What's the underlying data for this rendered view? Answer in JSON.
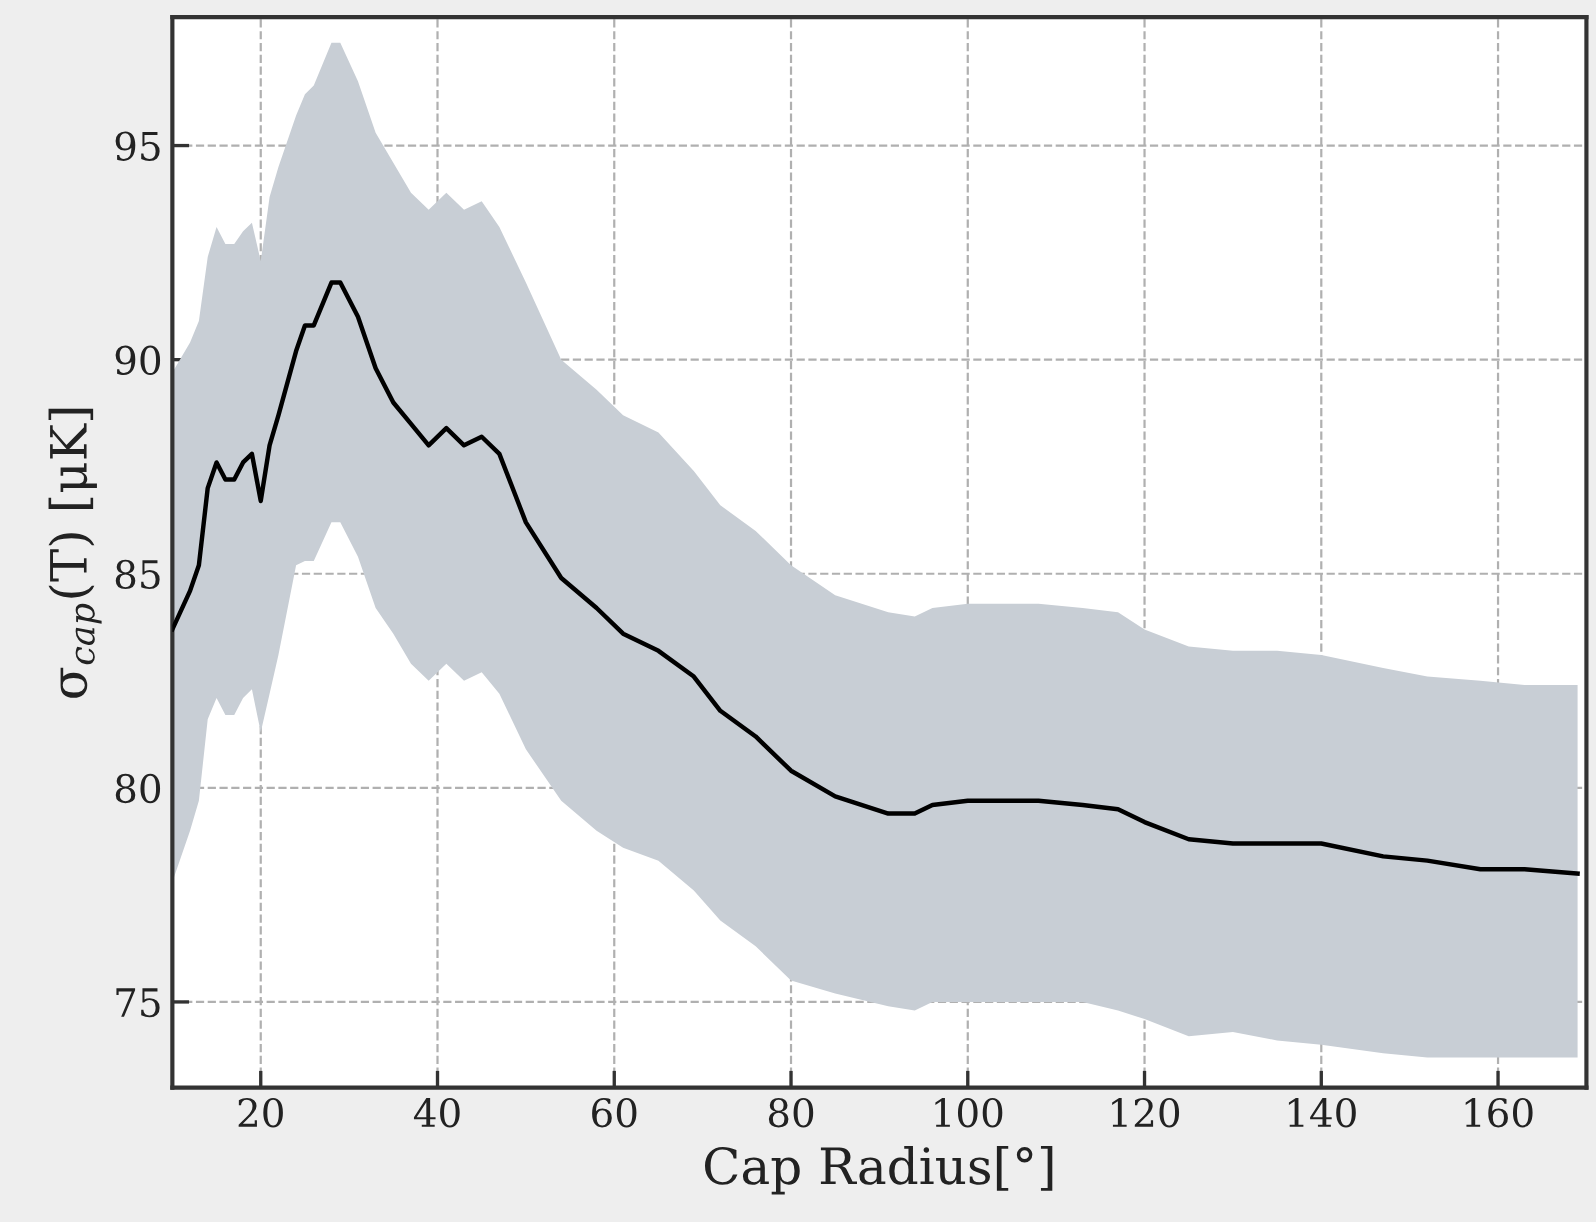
{
  "chart_data": {
    "type": "line",
    "xlabel": "Cap Radius[°]",
    "ylabel": "σ$_{cap}$(T) [μK]",
    "xlim": [
      10,
      170
    ],
    "ylim": [
      73,
      98
    ],
    "xticks": [
      20,
      40,
      60,
      80,
      100,
      120,
      140,
      160
    ],
    "yticks": [
      75,
      80,
      85,
      90,
      95
    ],
    "grid": true,
    "marker": "none",
    "line_style": "solid",
    "series": [
      {
        "color": "#000000",
        "x": [
          10,
          12,
          13,
          14,
          15,
          16,
          17,
          18,
          19,
          20,
          21,
          22,
          24,
          25,
          26,
          28,
          29,
          31,
          33,
          35,
          37,
          39,
          41,
          43,
          45,
          47,
          50,
          54,
          58,
          61,
          65,
          69,
          72,
          76,
          80,
          85,
          91,
          94,
          96,
          100,
          108,
          113,
          117,
          120,
          125,
          130,
          135,
          140,
          147,
          152,
          158,
          163,
          169
        ],
        "values": [
          83.7,
          84.6,
          85.2,
          87.0,
          87.6,
          87.2,
          87.2,
          87.6,
          87.8,
          86.7,
          88.0,
          88.7,
          90.2,
          90.8,
          90.8,
          91.8,
          91.8,
          91.0,
          89.8,
          89.0,
          88.5,
          88.0,
          88.4,
          88.0,
          88.2,
          87.8,
          86.2,
          84.9,
          84.2,
          83.6,
          83.2,
          82.6,
          81.8,
          81.2,
          80.4,
          79.8,
          79.4,
          79.4,
          79.6,
          79.7,
          79.7,
          79.6,
          79.5,
          79.2,
          78.8,
          78.7,
          78.7,
          78.7,
          78.4,
          78.3,
          78.1,
          78.1,
          78.0
        ],
        "upper": [
          89.7,
          90.4,
          90.9,
          92.4,
          93.1,
          92.7,
          92.7,
          93.0,
          93.2,
          92.3,
          93.8,
          94.5,
          95.7,
          96.2,
          96.4,
          97.4,
          97.4,
          96.5,
          95.3,
          94.6,
          93.9,
          93.5,
          93.9,
          93.5,
          93.7,
          93.1,
          91.8,
          90.0,
          89.3,
          88.7,
          88.3,
          87.4,
          86.6,
          86.0,
          85.2,
          84.5,
          84.1,
          84.0,
          84.2,
          84.3,
          84.3,
          84.2,
          84.1,
          83.7,
          83.3,
          83.2,
          83.2,
          83.1,
          82.8,
          82.6,
          82.5,
          82.4,
          82.4
        ],
        "lower": [
          77.8,
          79.0,
          79.7,
          81.6,
          82.1,
          81.7,
          81.7,
          82.1,
          82.3,
          81.3,
          82.2,
          83.1,
          85.2,
          85.3,
          85.3,
          86.2,
          86.2,
          85.4,
          84.2,
          83.6,
          82.9,
          82.5,
          82.9,
          82.5,
          82.7,
          82.2,
          80.9,
          79.7,
          79.0,
          78.6,
          78.3,
          77.6,
          76.9,
          76.3,
          75.5,
          75.2,
          74.9,
          74.8,
          75.0,
          75.0,
          75.0,
          75.0,
          74.8,
          74.6,
          74.2,
          74.3,
          74.1,
          74.0,
          73.8,
          73.7,
          73.7,
          73.7,
          73.7
        ]
      }
    ]
  }
}
